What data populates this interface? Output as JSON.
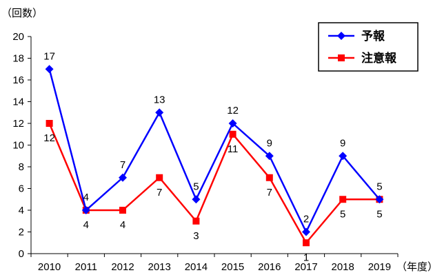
{
  "chart_data": {
    "type": "line",
    "y_unit_label": "（回数）",
    "x_unit_label": "（年度）",
    "categories": [
      "2010",
      "2011",
      "2012",
      "2013",
      "2014",
      "2015",
      "2016",
      "2017",
      "2018",
      "2019"
    ],
    "ylim": [
      0,
      20
    ],
    "yticks": [
      0,
      2,
      4,
      6,
      8,
      10,
      12,
      14,
      16,
      18,
      20
    ],
    "grid": false,
    "legend_position": "top-right",
    "series": [
      {
        "name": "予報",
        "color": "#0000ff",
        "marker": "diamond",
        "values": [
          17,
          4,
          7,
          13,
          5,
          12,
          9,
          2,
          9,
          5
        ],
        "label_position": [
          "above",
          "above",
          "above",
          "above",
          "above",
          "above",
          "above",
          "above",
          "above",
          "above"
        ]
      },
      {
        "name": "注意報",
        "color": "#ff0000",
        "marker": "square",
        "values": [
          12,
          4,
          4,
          7,
          3,
          11,
          7,
          1,
          5,
          5
        ],
        "label_position": [
          "below",
          "below",
          "below",
          "below",
          "below",
          "below",
          "below",
          "below",
          "below",
          "below"
        ]
      }
    ]
  }
}
